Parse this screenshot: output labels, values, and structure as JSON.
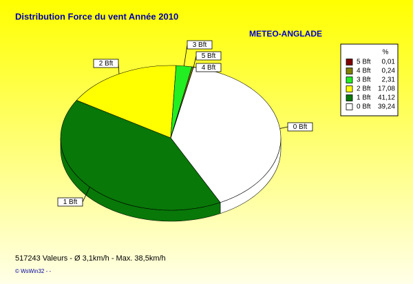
{
  "chart_data": {
    "type": "pie",
    "title": "Distribution Force du vent  Année 2010",
    "subtitle": "METEO-ANGLADE",
    "legend_title": "%",
    "categories": [
      "0 Bft",
      "1 Bft",
      "2 Bft",
      "3 Bft",
      "4 Bft",
      "5 Bft"
    ],
    "values": [
      39.24,
      41.12,
      17.08,
      2.31,
      0.24,
      0.01
    ],
    "value_labels": [
      "39,24",
      "41,12",
      "17,08",
      "2,31",
      "0,24",
      "0,01"
    ],
    "colors": [
      "#ffffff",
      "#087808",
      "#ffff00",
      "#22ee22",
      "#808000",
      "#800000"
    ],
    "footer": "517243 Valeurs   -   Ø 3,1km/h  -  Max. 38,5km/h",
    "credit": "© WsWin32  -  -"
  }
}
